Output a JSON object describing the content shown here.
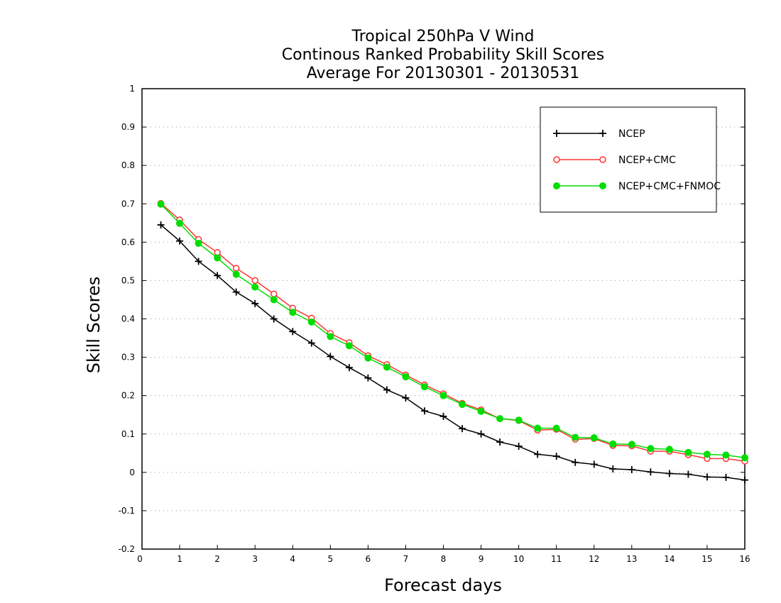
{
  "chart_data": {
    "type": "line",
    "title": [
      "Tropical 250hPa V Wind",
      "Continous Ranked Probability Skill Scores",
      "Average For 20130301 - 20130531"
    ],
    "xlabel": "Forecast days",
    "ylabel": "Skill Scores",
    "xlim": [
      0,
      16
    ],
    "ylim": [
      -0.2,
      1
    ],
    "xticks": [
      0,
      1,
      2,
      3,
      4,
      5,
      6,
      7,
      8,
      9,
      10,
      11,
      12,
      13,
      14,
      15,
      16
    ],
    "xtick_labels": [
      "0",
      "1",
      "2",
      "3",
      "4",
      "5",
      "6",
      "7",
      "8",
      "9",
      "10",
      "11",
      "12",
      "13",
      "14",
      "15",
      "16"
    ],
    "yticks": [
      -0.2,
      -0.1,
      0,
      0.1,
      0.2,
      0.3,
      0.4,
      0.5,
      0.6,
      0.7,
      0.8,
      0.9,
      1
    ],
    "ytick_labels": [
      "-0.2",
      "-0.1",
      "0",
      "0.1",
      "0.2",
      "0.3",
      "0.4",
      "0.5",
      "0.6",
      "0.7",
      "0.8",
      "0.9",
      "1"
    ],
    "grid": "horizontal dotted",
    "legend_position": "top-right",
    "x": [
      0.5,
      1,
      1.5,
      2,
      2.5,
      3,
      3.5,
      4,
      4.5,
      5,
      5.5,
      6,
      6.5,
      7,
      7.5,
      8,
      8.5,
      9,
      9.5,
      10,
      10.5,
      11,
      11.5,
      12,
      12.5,
      13,
      13.5,
      14,
      14.5,
      15,
      15.5,
      16
    ],
    "series": [
      {
        "name": "NCEP",
        "color": "#000000",
        "marker": "plus",
        "values": [
          0.645,
          0.603,
          0.55,
          0.513,
          0.47,
          0.44,
          0.4,
          0.367,
          0.337,
          0.302,
          0.273,
          0.246,
          0.215,
          0.194,
          0.16,
          0.146,
          0.114,
          0.1,
          0.079,
          0.068,
          0.047,
          0.042,
          0.026,
          0.021,
          0.009,
          0.007,
          0.001,
          -0.003,
          -0.005,
          -0.012,
          -0.013,
          -0.02
        ]
      },
      {
        "name": "NCEP+CMC",
        "color": "#ff3333",
        "marker": "open-circle",
        "values": [
          0.701,
          0.658,
          0.607,
          0.573,
          0.532,
          0.5,
          0.465,
          0.428,
          0.402,
          0.362,
          0.338,
          0.304,
          0.281,
          0.254,
          0.228,
          0.205,
          0.18,
          0.163,
          0.14,
          0.135,
          0.11,
          0.112,
          0.086,
          0.088,
          0.07,
          0.069,
          0.055,
          0.055,
          0.046,
          0.036,
          0.036,
          0.029
        ]
      },
      {
        "name": "NCEP+CMC+FNMOC",
        "color": "#00dd00",
        "marker": "filled-circle",
        "values": [
          0.699,
          0.649,
          0.597,
          0.559,
          0.516,
          0.483,
          0.45,
          0.417,
          0.392,
          0.354,
          0.33,
          0.298,
          0.274,
          0.249,
          0.223,
          0.2,
          0.177,
          0.159,
          0.14,
          0.136,
          0.115,
          0.115,
          0.091,
          0.09,
          0.074,
          0.073,
          0.062,
          0.06,
          0.052,
          0.047,
          0.045,
          0.038
        ]
      }
    ]
  }
}
